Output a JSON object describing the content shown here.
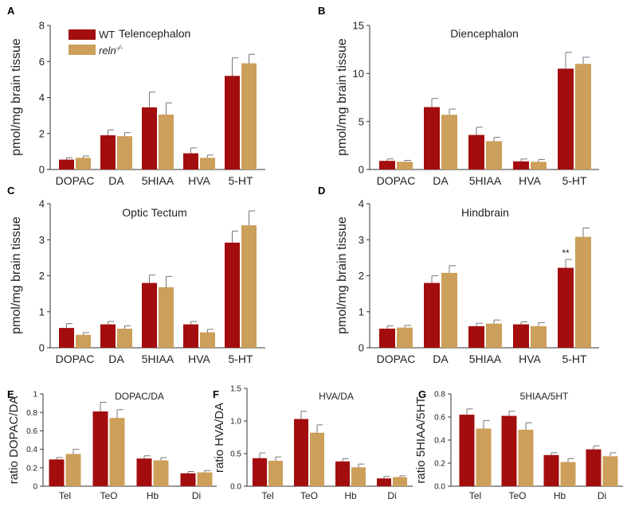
{
  "colors": {
    "wt": "#a30d0d",
    "reln": "#cc9f5a",
    "error_bar": "#777777"
  },
  "legend": {
    "wt_label": "WT",
    "reln_label": "reln",
    "reln_sup": "-/-"
  },
  "chart_data": [
    {
      "panel": "A",
      "type": "bar",
      "title": "Telencephalon",
      "xlabel": "",
      "ylabel": "pmol/mg brain tissue",
      "ylim": [
        0,
        8
      ],
      "yticks": [
        "0",
        "2",
        "4",
        "6",
        "8"
      ],
      "categories": [
        "DOPAC",
        "DA",
        "5HIAA",
        "HVA",
        "5-HT"
      ],
      "series": [
        {
          "name": "WT",
          "values": [
            0.55,
            1.9,
            3.45,
            0.9,
            5.2
          ],
          "errors": [
            0.1,
            0.3,
            0.85,
            0.3,
            1.0
          ]
        },
        {
          "name": "reln-/-",
          "values": [
            0.65,
            1.85,
            3.05,
            0.65,
            5.9
          ],
          "errors": [
            0.1,
            0.2,
            0.65,
            0.15,
            0.5
          ]
        }
      ],
      "annotations": []
    },
    {
      "panel": "B",
      "type": "bar",
      "title": "Diencephalon",
      "xlabel": "",
      "ylabel": "pmol/mg brain tissue",
      "ylim": [
        0,
        15
      ],
      "yticks": [
        "0",
        "5",
        "10",
        "15"
      ],
      "categories": [
        "DOPAC",
        "DA",
        "5HIAA",
        "HVA",
        "5-HT"
      ],
      "series": [
        {
          "name": "WT",
          "values": [
            0.9,
            6.5,
            3.6,
            0.85,
            10.5
          ],
          "errors": [
            0.2,
            0.9,
            0.8,
            0.25,
            1.7
          ]
        },
        {
          "name": "reln-/-",
          "values": [
            0.8,
            5.7,
            2.95,
            0.8,
            11.0
          ],
          "errors": [
            0.15,
            0.6,
            0.4,
            0.25,
            0.7
          ]
        }
      ],
      "annotations": []
    },
    {
      "panel": "C",
      "type": "bar",
      "title": "Optic Tectum",
      "xlabel": "",
      "ylabel": "pmol/mg brain tissue",
      "ylim": [
        0,
        4
      ],
      "yticks": [
        "0",
        "1",
        "2",
        "3",
        "4"
      ],
      "categories": [
        "DOPAC",
        "DA",
        "5HIAA",
        "HVA",
        "5-HT"
      ],
      "series": [
        {
          "name": "WT",
          "values": [
            0.55,
            0.65,
            1.8,
            0.65,
            2.92
          ],
          "errors": [
            0.12,
            0.08,
            0.22,
            0.08,
            0.32
          ]
        },
        {
          "name": "reln-/-",
          "values": [
            0.36,
            0.53,
            1.68,
            0.43,
            3.4
          ],
          "errors": [
            0.06,
            0.08,
            0.3,
            0.08,
            0.4
          ]
        }
      ],
      "annotations": []
    },
    {
      "panel": "D",
      "type": "bar",
      "title": "Hindbrain",
      "xlabel": "",
      "ylabel": "pmol/mg brain tissue",
      "ylim": [
        0,
        4
      ],
      "yticks": [
        "0",
        "1",
        "2",
        "3",
        "4"
      ],
      "categories": [
        "DOPAC",
        "DA",
        "5HIAA",
        "HVA",
        "5-HT"
      ],
      "series": [
        {
          "name": "WT",
          "values": [
            0.53,
            1.8,
            0.6,
            0.65,
            2.22
          ],
          "errors": [
            0.08,
            0.2,
            0.08,
            0.07,
            0.23
          ]
        },
        {
          "name": "reln-/-",
          "values": [
            0.56,
            2.08,
            0.67,
            0.6,
            3.08
          ],
          "errors": [
            0.06,
            0.2,
            0.1,
            0.1,
            0.25
          ]
        }
      ],
      "annotations": [
        {
          "category": "5-HT",
          "series": "WT",
          "text": "**"
        }
      ]
    },
    {
      "panel": "E",
      "type": "bar",
      "title": "DOPAC/DA",
      "xlabel": "",
      "ylabel": "ratio DOPAC/DA",
      "ylim": [
        0,
        1.0
      ],
      "yticks": [
        "0",
        "0.2",
        "0.4",
        "0.6",
        "0.8",
        "1"
      ],
      "categories": [
        "Tel",
        "TeO",
        "Hb",
        "Di"
      ],
      "series": [
        {
          "name": "WT",
          "values": [
            0.29,
            0.81,
            0.3,
            0.14
          ],
          "errors": [
            0.02,
            0.1,
            0.03,
            0.02
          ]
        },
        {
          "name": "reln-/-",
          "values": [
            0.35,
            0.74,
            0.28,
            0.15
          ],
          "errors": [
            0.05,
            0.09,
            0.03,
            0.02
          ]
        }
      ],
      "annotations": []
    },
    {
      "panel": "F",
      "type": "bar",
      "title": "HVA/DA",
      "xlabel": "",
      "ylabel": "ratio HVA/DA",
      "ylim": [
        0,
        1.5
      ],
      "yticks": [
        "0.0",
        "0.5",
        "1.0",
        "1.5"
      ],
      "categories": [
        "Tel",
        "TeO",
        "Hb",
        "Di"
      ],
      "series": [
        {
          "name": "WT",
          "values": [
            0.43,
            1.03,
            0.38,
            0.12
          ],
          "errors": [
            0.08,
            0.12,
            0.04,
            0.03
          ]
        },
        {
          "name": "reln-/-",
          "values": [
            0.39,
            0.82,
            0.29,
            0.14
          ],
          "errors": [
            0.06,
            0.12,
            0.05,
            0.02
          ]
        }
      ],
      "annotations": []
    },
    {
      "panel": "G",
      "type": "bar",
      "title": "5HIAA/5HT",
      "xlabel": "",
      "ylabel": "ratio 5HIAA/5HT",
      "ylim": [
        0,
        0.8
      ],
      "yticks": [
        "0.0",
        "0.2",
        "0.4",
        "0.6",
        "0.8"
      ],
      "categories": [
        "Tel",
        "TeO",
        "Hb",
        "Di"
      ],
      "series": [
        {
          "name": "WT",
          "values": [
            0.62,
            0.61,
            0.27,
            0.32
          ],
          "errors": [
            0.05,
            0.04,
            0.02,
            0.03
          ]
        },
        {
          "name": "reln-/-",
          "values": [
            0.5,
            0.49,
            0.21,
            0.26
          ],
          "errors": [
            0.07,
            0.06,
            0.03,
            0.03
          ]
        }
      ],
      "annotations": []
    }
  ]
}
